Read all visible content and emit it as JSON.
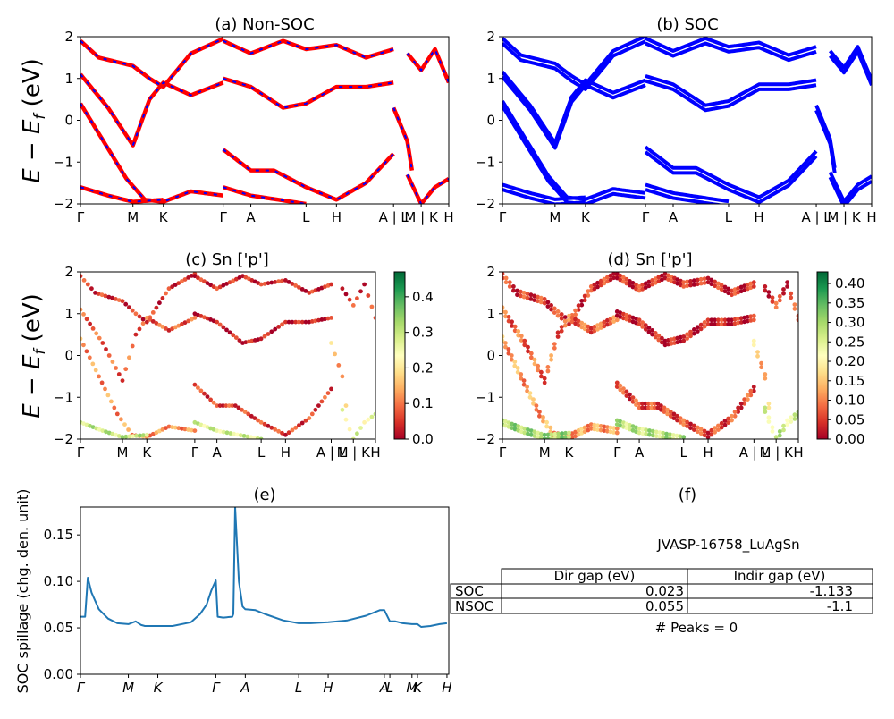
{
  "colors": {
    "red": "#ff0000",
    "blue": "#0000ff",
    "spillage_line": "#1f77b4",
    "colormap": "RdYlGn"
  },
  "chart_data": [
    {
      "type": "line",
      "title": "(a) Non-SOC",
      "ylabel": "E − E_f (eV)",
      "ylim": [
        -2,
        2
      ],
      "yticks": [
        "−2",
        "−1",
        "0",
        "1",
        "2"
      ],
      "xticks": [
        {
          "label": "Γ",
          "x": 0
        },
        {
          "label": "M",
          "x": 0.57
        },
        {
          "label": "K",
          "x": 0.9
        },
        {
          "label": "Γ",
          "x": 1.55
        },
        {
          "label": "A",
          "x": 1.85
        },
        {
          "label": "L",
          "x": 2.45
        },
        {
          "label": "H",
          "x": 2.78
        },
        {
          "label": "A | L",
          "x": 3.4
        },
        {
          "label": "M | K",
          "x": 3.7
        },
        {
          "label": "H",
          "x": 4.0
        }
      ],
      "xlim": [
        0,
        4.0
      ],
      "series_styles": [
        "red solid",
        "blue dashed"
      ],
      "bands": [
        [
          [
            0,
            1.9
          ],
          [
            0.2,
            1.5
          ],
          [
            0.57,
            1.3
          ],
          [
            0.75,
            1.0
          ],
          [
            0.9,
            0.8
          ],
          [
            1.2,
            1.6
          ],
          [
            1.55,
            1.95
          ]
        ],
        [
          [
            0,
            1.1
          ],
          [
            0.3,
            0.3
          ],
          [
            0.57,
            -0.6
          ],
          [
            0.75,
            0.5
          ],
          [
            0.9,
            0.9
          ],
          [
            1.2,
            0.6
          ],
          [
            1.55,
            0.9
          ]
        ],
        [
          [
            0,
            0.4
          ],
          [
            0.25,
            -0.5
          ],
          [
            0.5,
            -1.4
          ],
          [
            0.7,
            -1.9
          ],
          [
            0.9,
            -1.95
          ],
          [
            1.2,
            -1.7
          ],
          [
            1.55,
            -1.8
          ]
        ],
        [
          [
            0,
            -1.6
          ],
          [
            0.3,
            -1.8
          ],
          [
            0.57,
            -1.95
          ],
          [
            0.9,
            -1.9
          ]
        ],
        [
          [
            1.55,
            1.0
          ],
          [
            1.85,
            0.8
          ],
          [
            2.2,
            0.3
          ],
          [
            2.45,
            0.4
          ],
          [
            2.78,
            0.8
          ],
          [
            3.1,
            0.8
          ],
          [
            3.4,
            0.9
          ]
        ],
        [
          [
            1.55,
            1.9
          ],
          [
            1.85,
            1.6
          ],
          [
            2.2,
            1.9
          ],
          [
            2.45,
            1.7
          ],
          [
            2.78,
            1.8
          ],
          [
            3.1,
            1.5
          ],
          [
            3.4,
            1.7
          ]
        ],
        [
          [
            1.55,
            -0.7
          ],
          [
            1.85,
            -1.2
          ],
          [
            2.1,
            -1.2
          ],
          [
            2.45,
            -1.6
          ],
          [
            2.78,
            -1.9
          ],
          [
            3.1,
            -1.5
          ],
          [
            3.4,
            -0.8
          ]
        ],
        [
          [
            1.55,
            -1.6
          ],
          [
            1.85,
            -1.8
          ],
          [
            2.45,
            -2.0
          ]
        ],
        [
          [
            3.4,
            0.3
          ],
          [
            3.55,
            -0.5
          ],
          [
            3.6,
            -1.2
          ]
        ],
        [
          [
            3.55,
            -1.3
          ],
          [
            3.7,
            -2.0
          ],
          [
            3.85,
            -1.6
          ],
          [
            4.0,
            -1.4
          ]
        ],
        [
          [
            3.55,
            1.6
          ],
          [
            3.7,
            1.2
          ],
          [
            3.85,
            1.7
          ],
          [
            4.0,
            0.9
          ]
        ]
      ]
    },
    {
      "type": "line",
      "title": "(b) SOC",
      "ylim": [
        -2,
        2
      ],
      "yticks": [
        "−2",
        "−1",
        "0",
        "1",
        "2"
      ],
      "xticks": [
        {
          "label": "Γ",
          "x": 0
        },
        {
          "label": "M",
          "x": 0.57
        },
        {
          "label": "K",
          "x": 0.9
        },
        {
          "label": "Γ",
          "x": 1.55
        },
        {
          "label": "A",
          "x": 1.85
        },
        {
          "label": "L",
          "x": 2.45
        },
        {
          "label": "H",
          "x": 2.78
        },
        {
          "label": "A | L",
          "x": 3.4
        },
        {
          "label": "M | K",
          "x": 3.7
        },
        {
          "label": "H",
          "x": 4.0
        }
      ],
      "xlim": [
        0,
        4.0
      ],
      "series_styles": [
        "blue solid"
      ],
      "bands": [
        [
          [
            0,
            1.9
          ],
          [
            0.2,
            1.5
          ],
          [
            0.57,
            1.3
          ],
          [
            0.75,
            1.0
          ],
          [
            0.9,
            0.8
          ],
          [
            1.2,
            1.6
          ],
          [
            1.55,
            1.95
          ]
        ],
        [
          [
            0,
            1.1
          ],
          [
            0.3,
            0.3
          ],
          [
            0.57,
            -0.6
          ],
          [
            0.75,
            0.5
          ],
          [
            0.9,
            0.9
          ],
          [
            1.2,
            0.6
          ],
          [
            1.55,
            0.9
          ]
        ],
        [
          [
            0,
            0.4
          ],
          [
            0.25,
            -0.5
          ],
          [
            0.5,
            -1.4
          ],
          [
            0.7,
            -1.9
          ],
          [
            0.9,
            -1.95
          ],
          [
            1.2,
            -1.7
          ],
          [
            1.55,
            -1.8
          ]
        ],
        [
          [
            0,
            -1.6
          ],
          [
            0.3,
            -1.8
          ],
          [
            0.57,
            -1.95
          ],
          [
            0.9,
            -1.9
          ]
        ],
        [
          [
            1.55,
            1.0
          ],
          [
            1.85,
            0.8
          ],
          [
            2.2,
            0.3
          ],
          [
            2.45,
            0.4
          ],
          [
            2.78,
            0.8
          ],
          [
            3.1,
            0.8
          ],
          [
            3.4,
            0.9
          ]
        ],
        [
          [
            1.55,
            1.9
          ],
          [
            1.85,
            1.6
          ],
          [
            2.2,
            1.9
          ],
          [
            2.45,
            1.7
          ],
          [
            2.78,
            1.8
          ],
          [
            3.1,
            1.5
          ],
          [
            3.4,
            1.7
          ]
        ],
        [
          [
            1.55,
            -0.7
          ],
          [
            1.85,
            -1.2
          ],
          [
            2.1,
            -1.2
          ],
          [
            2.45,
            -1.6
          ],
          [
            2.78,
            -1.9
          ],
          [
            3.1,
            -1.5
          ],
          [
            3.4,
            -0.8
          ]
        ],
        [
          [
            1.55,
            -1.6
          ],
          [
            1.85,
            -1.8
          ],
          [
            2.45,
            -2.0
          ]
        ],
        [
          [
            3.4,
            0.3
          ],
          [
            3.55,
            -0.5
          ],
          [
            3.6,
            -1.2
          ]
        ],
        [
          [
            3.55,
            -1.3
          ],
          [
            3.7,
            -2.0
          ],
          [
            3.85,
            -1.6
          ],
          [
            4.0,
            -1.4
          ]
        ],
        [
          [
            3.55,
            1.6
          ],
          [
            3.7,
            1.2
          ],
          [
            3.85,
            1.7
          ],
          [
            4.0,
            0.9
          ]
        ]
      ]
    },
    {
      "type": "scatter",
      "title": "(c)  Sn ['p']",
      "ylabel": "E − E_f (eV)",
      "ylim": [
        -2,
        2
      ],
      "yticks": [
        "−2",
        "−1",
        "0",
        "1",
        "2"
      ],
      "xlim": [
        0,
        4.0
      ],
      "xticks": [
        {
          "label": "Γ",
          "x": 0
        },
        {
          "label": "M",
          "x": 0.57
        },
        {
          "label": "K",
          "x": 0.9
        },
        {
          "label": "Γ",
          "x": 1.55
        },
        {
          "label": "A",
          "x": 1.85
        },
        {
          "label": "L",
          "x": 2.45
        },
        {
          "label": "H",
          "x": 2.78
        },
        {
          "label": "A | L",
          "x": 3.4
        },
        {
          "label": "M | K",
          "x": 3.7
        },
        {
          "label": "H",
          "x": 4.0
        }
      ],
      "colorbar": {
        "min": 0.0,
        "max": 0.47,
        "ticks": [
          "0.0",
          "0.1",
          "0.2",
          "0.3",
          "0.4"
        ],
        "tick_values": [
          0,
          0.1,
          0.2,
          0.3,
          0.4
        ]
      },
      "band_weights": [
        0.05,
        0.08,
        0.12,
        0.3,
        0.03,
        0.04,
        0.06,
        0.28,
        0.15,
        0.26,
        0.05
      ],
      "uses_bands_of": 0
    },
    {
      "type": "scatter",
      "title": "(d) Sn ['p']",
      "ylim": [
        -2,
        2
      ],
      "yticks": [
        "−2",
        "−1",
        "0",
        "1",
        "2"
      ],
      "xlim": [
        0,
        4.0
      ],
      "xticks": [
        {
          "label": "Γ",
          "x": 0
        },
        {
          "label": "M",
          "x": 0.57
        },
        {
          "label": "K",
          "x": 0.9
        },
        {
          "label": "Γ",
          "x": 1.55
        },
        {
          "label": "A",
          "x": 1.85
        },
        {
          "label": "L",
          "x": 2.45
        },
        {
          "label": "H",
          "x": 2.78
        },
        {
          "label": "A | L",
          "x": 3.4
        },
        {
          "label": "M | K",
          "x": 3.7
        },
        {
          "label": "H",
          "x": 4.0
        }
      ],
      "colorbar": {
        "min": 0.0,
        "max": 0.43,
        "ticks": [
          "0.00",
          "0.05",
          "0.10",
          "0.15",
          "0.20",
          "0.25",
          "0.30",
          "0.35",
          "0.40"
        ],
        "tick_values": [
          0,
          0.05,
          0.1,
          0.15,
          0.2,
          0.25,
          0.3,
          0.35,
          0.4
        ]
      },
      "band_weights": [
        0.05,
        0.08,
        0.12,
        0.3,
        0.03,
        0.04,
        0.06,
        0.28,
        0.15,
        0.26,
        0.05
      ],
      "uses_bands_of": 0
    },
    {
      "type": "line",
      "title": "(e)",
      "ylabel": "SOC spillage (chg. den. unit)",
      "ylim": [
        0,
        0.18
      ],
      "yticks": [
        {
          "label": "0.00",
          "y": 0.0
        },
        {
          "label": "0.05",
          "y": 0.05
        },
        {
          "label": "0.10",
          "y": 0.1
        },
        {
          "label": "0.15",
          "y": 0.15
        }
      ],
      "xlim": [
        0,
        4.0
      ],
      "xticks": [
        {
          "label": "Γ",
          "x": 0
        },
        {
          "label": "M",
          "x": 0.52
        },
        {
          "label": "K",
          "x": 0.84
        },
        {
          "label": "Γ",
          "x": 1.47
        },
        {
          "label": "A",
          "x": 1.79
        },
        {
          "label": "L",
          "x": 2.37
        },
        {
          "label": "H",
          "x": 2.69
        },
        {
          "label": "A",
          "x": 3.3
        },
        {
          "label": "L",
          "x": 3.36
        },
        {
          "label": "M",
          "x": 3.6
        },
        {
          "label": "K",
          "x": 3.66
        },
        {
          "label": "H",
          "x": 3.98
        }
      ],
      "x": [
        0,
        0.05,
        0.08,
        0.12,
        0.2,
        0.3,
        0.4,
        0.52,
        0.6,
        0.66,
        0.7,
        0.84,
        1.0,
        1.2,
        1.3,
        1.37,
        1.42,
        1.47,
        1.49,
        1.55,
        1.65,
        1.66,
        1.68,
        1.7,
        1.72,
        1.76,
        1.79,
        1.9,
        2.0,
        2.2,
        2.37,
        2.5,
        2.69,
        2.9,
        3.1,
        3.25,
        3.3,
        3.36,
        3.42,
        3.5,
        3.6,
        3.66,
        3.7,
        3.8,
        3.9,
        3.98
      ],
      "y": [
        0.062,
        0.062,
        0.104,
        0.088,
        0.07,
        0.06,
        0.055,
        0.054,
        0.057,
        0.053,
        0.052,
        0.052,
        0.052,
        0.056,
        0.065,
        0.075,
        0.09,
        0.101,
        0.062,
        0.061,
        0.062,
        0.065,
        0.18,
        0.14,
        0.1,
        0.073,
        0.07,
        0.069,
        0.065,
        0.058,
        0.055,
        0.055,
        0.056,
        0.058,
        0.063,
        0.069,
        0.069,
        0.057,
        0.057,
        0.055,
        0.054,
        0.054,
        0.051,
        0.052,
        0.054,
        0.055
      ]
    }
  ],
  "panel_f": {
    "title": "(f)",
    "material": "JVASP-16758_LuAgSn",
    "columns": [
      "Dir gap (eV)",
      "Indir gap (eV)"
    ],
    "rows": [
      {
        "label": "SOC",
        "dir": "0.023",
        "indir": "-1.133"
      },
      {
        "label": "NSOC",
        "dir": "0.055",
        "indir": "-1.1"
      }
    ],
    "peaks": "# Peaks = 0"
  }
}
